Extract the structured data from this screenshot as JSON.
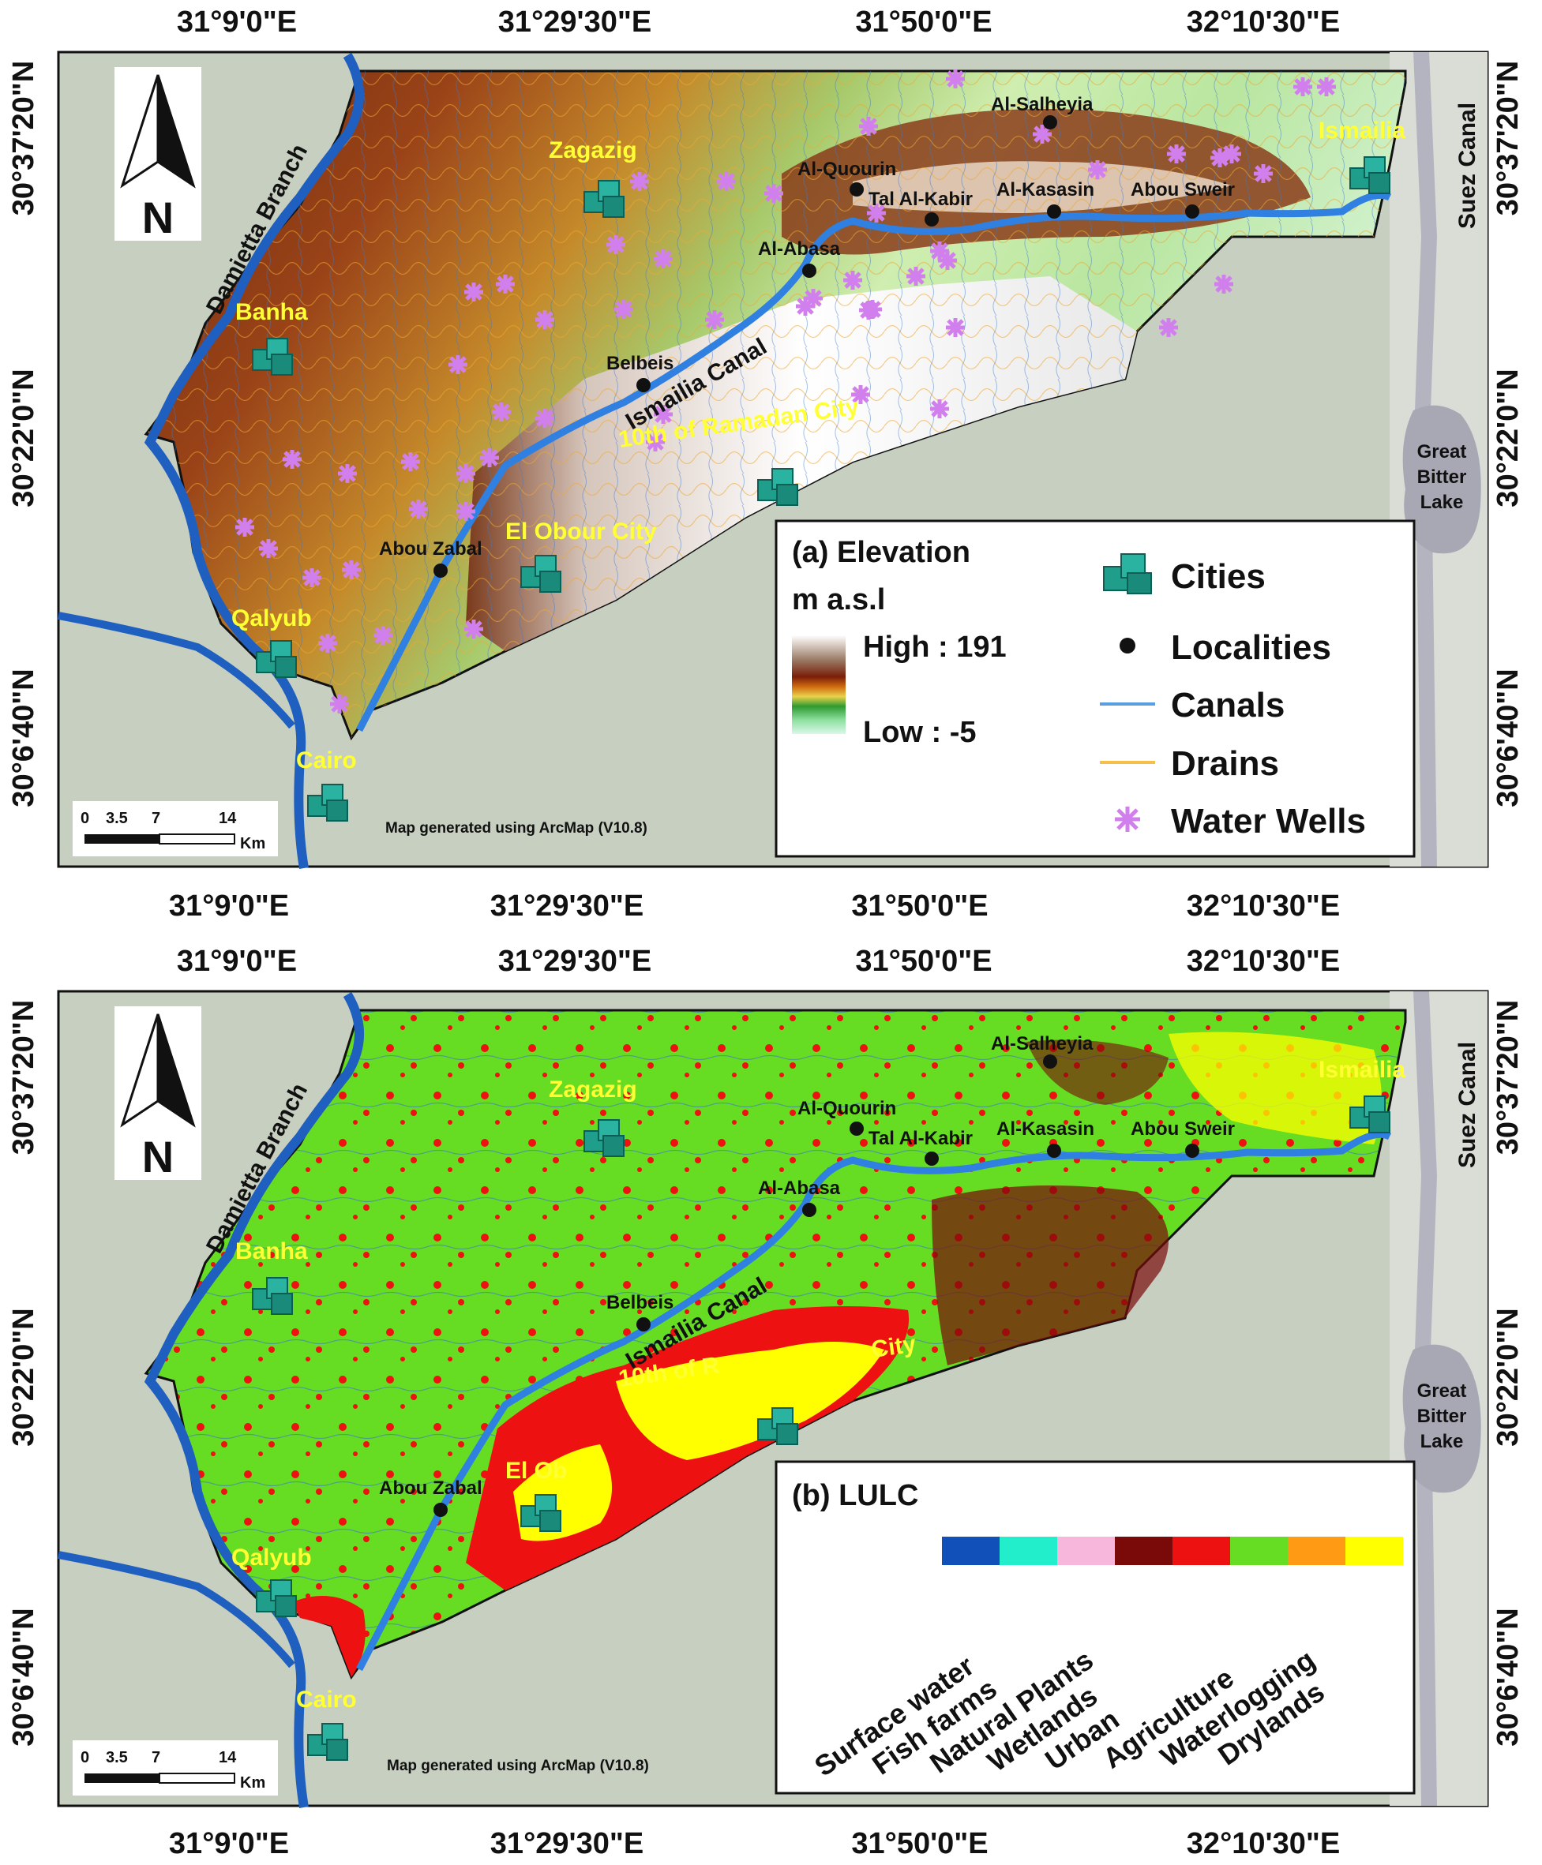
{
  "colors": {
    "background_land": "#c9d2c2",
    "river": "#1f5fbf",
    "canal_main": "#2f80e0",
    "canal_line": "#5b9ee0",
    "drain_line": "#f5c04a",
    "city_label": "#ffff33",
    "well": "#d27fee",
    "city_icon": "#1f9e8c",
    "elev_high": "#ffffff",
    "elev_mid": "#8b2e12",
    "elev_low": "#b6f0c8",
    "lulc_agri": "#66dd22",
    "lulc_urban": "#ee1111",
    "lulc_dry": "#ffff00",
    "lulc_wet": "#7a0a0a"
  },
  "coords": {
    "lon": [
      "31°9'0\"E",
      "31°29'30\"E",
      "31°50'0\"E",
      "32°10'30\"E"
    ],
    "lat": [
      "30°37'20\"N",
      "30°22'0\"N",
      "30°6'40\"N"
    ]
  },
  "labels": {
    "cities": [
      "Zagazig",
      "Banha",
      "Qalyub",
      "Cairo",
      "Ismailia",
      "El Obour City",
      "10th of Ramadan City"
    ],
    "localities": [
      "Al-Salheyia",
      "Al-Quourin",
      "Tal Al-Kabir",
      "Al-Kasasin",
      "Abou Sweir",
      "Al-Abasa",
      "Belbeis",
      "Abou Zabal"
    ],
    "damietta": "Damietta Branch",
    "ismailia_canal": "Ismailia Canal",
    "suez": "Suez Canal",
    "lake": [
      "Great",
      "Bitter",
      "Lake"
    ],
    "credit": "Map generated using ArcMap (V10.8)",
    "north": "N",
    "scale": {
      "ticks": [
        "0",
        "3.5",
        "7",
        "14"
      ],
      "unit": "Km"
    }
  },
  "panel_b_labels": {
    "el_obour": "El Ob",
    "tenth": "10th of R",
    "tenth_end": "City"
  },
  "legend_a": {
    "title": "(a) Elevation",
    "unit": "m a.s.l",
    "high": "High : 191",
    "low": "Low : -5",
    "items": [
      "Cities",
      "Localities",
      "Canals",
      "Drains",
      "Water Wells"
    ]
  },
  "legend_b": {
    "title": "(b) LULC",
    "classes": [
      {
        "name": "Surface water",
        "color": "#1050b8"
      },
      {
        "name": "Fish farms",
        "color": "#22eecc"
      },
      {
        "name": "Natural Plants",
        "color": "#f7b6dc"
      },
      {
        "name": "Wetlands",
        "color": "#7a0a0a"
      },
      {
        "name": "Urban",
        "color": "#ee1111"
      },
      {
        "name": "Agriculture",
        "color": "#66dd22"
      },
      {
        "name": "Waterlogging",
        "color": "#ff9a14"
      },
      {
        "name": "Drylands",
        "color": "#ffff00"
      }
    ]
  }
}
